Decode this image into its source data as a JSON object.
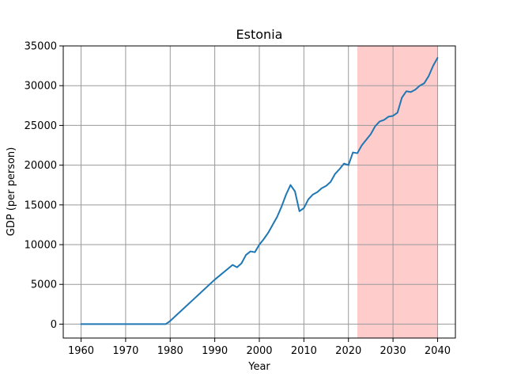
{
  "chart_data": {
    "type": "line",
    "title": "Estonia",
    "xlabel": "Year",
    "ylabel": "GDP (per person)",
    "xlim": [
      1956,
      2044
    ],
    "ylim": [
      -1750,
      35000
    ],
    "xticks": [
      1960,
      1970,
      1980,
      1990,
      2000,
      2010,
      2020,
      2030,
      2040
    ],
    "yticks": [
      0,
      5000,
      10000,
      15000,
      20000,
      25000,
      30000,
      35000
    ],
    "grid": true,
    "legend": "none",
    "highlight_band": {
      "x_start": 2022,
      "x_end": 2040,
      "color": "#ffcccc"
    },
    "series": [
      {
        "color": "#1f77b4",
        "x": [
          1960,
          1965,
          1970,
          1975,
          1979,
          1980,
          1985,
          1990,
          1994,
          1995,
          1996,
          1997,
          1998,
          1999,
          2000,
          2001,
          2002,
          2003,
          2004,
          2005,
          2006,
          2007,
          2008,
          2009,
          2010,
          2011,
          2012,
          2013,
          2014,
          2015,
          2016,
          2017,
          2018,
          2019,
          2020,
          2021,
          2022,
          2023,
          2024,
          2025,
          2026,
          2027,
          2028,
          2029,
          2030,
          2031,
          2032,
          2033,
          2034,
          2035,
          2036,
          2037,
          2038,
          2039,
          2040
        ],
        "y": [
          0,
          0,
          0,
          0,
          0,
          400,
          3000,
          5600,
          7450,
          7150,
          7650,
          8700,
          9150,
          9050,
          10000,
          10700,
          11500,
          12500,
          13500,
          14800,
          16300,
          17500,
          16700,
          14200,
          14600,
          15700,
          16300,
          16600,
          17100,
          17400,
          17900,
          18900,
          19500,
          20200,
          20000,
          21600,
          21500,
          22500,
          23200,
          23900,
          24900,
          25500,
          25700,
          26100,
          26200,
          26600,
          28500,
          29300,
          29200,
          29500,
          30000,
          30300,
          31200,
          32500,
          33500
        ]
      }
    ]
  }
}
